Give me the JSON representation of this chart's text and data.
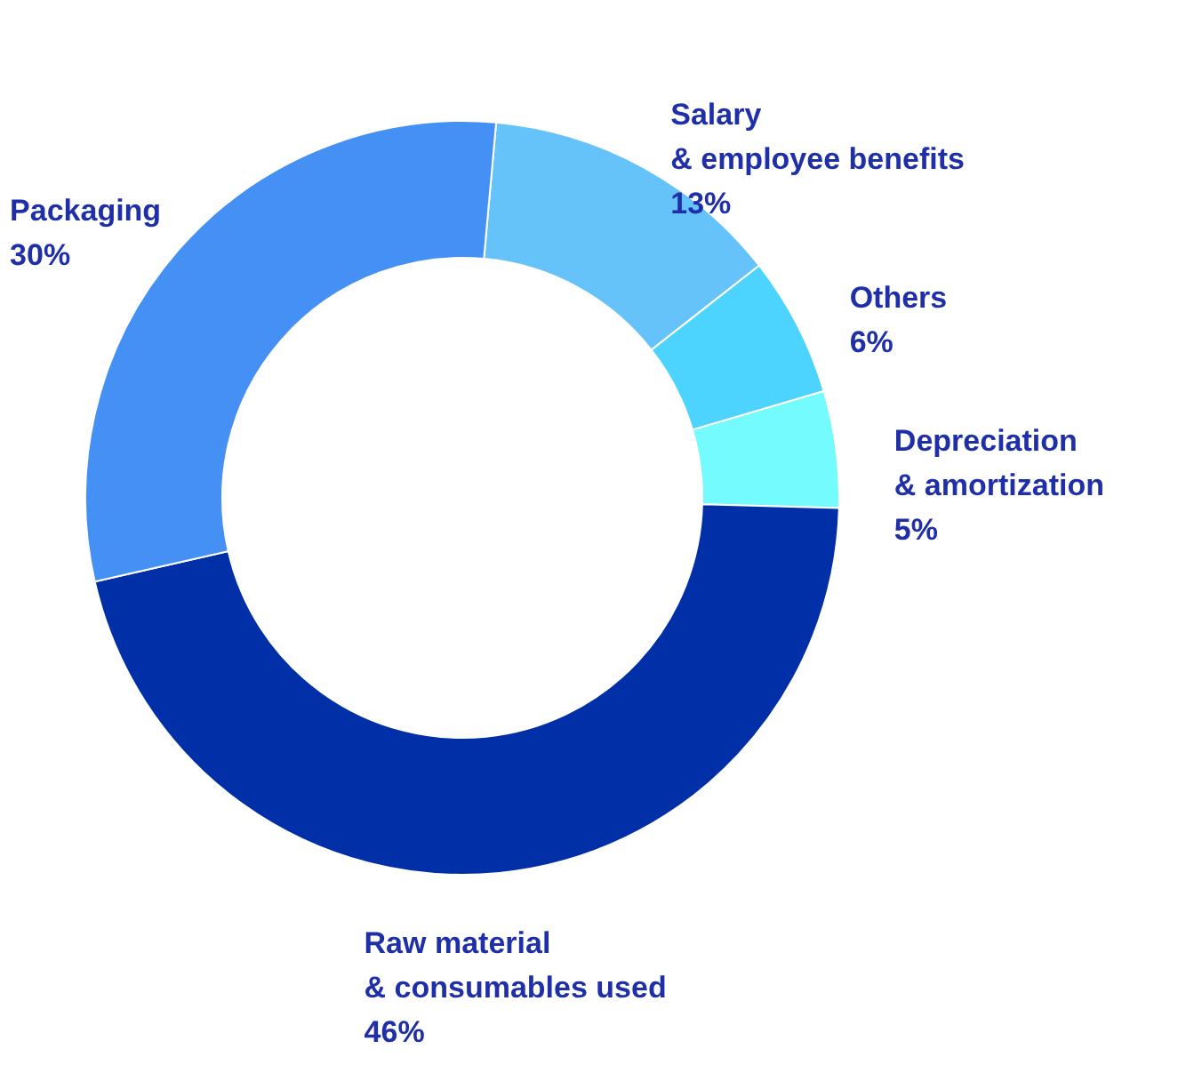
{
  "chart_data": {
    "type": "donut",
    "categories": [
      "Salary\n& employee benefits",
      "Others",
      "Depreciation\n& amortization",
      "Raw material\n& consumables used",
      "Packaging"
    ],
    "values": [
      13,
      6,
      5,
      46,
      30
    ],
    "colors": [
      "#66c3fa",
      "#4dd4fe",
      "#73fbfd",
      "#002fa7",
      "#4590f5"
    ],
    "value_labels": [
      "13%",
      "6%",
      "5%",
      "46%",
      "30%"
    ]
  }
}
